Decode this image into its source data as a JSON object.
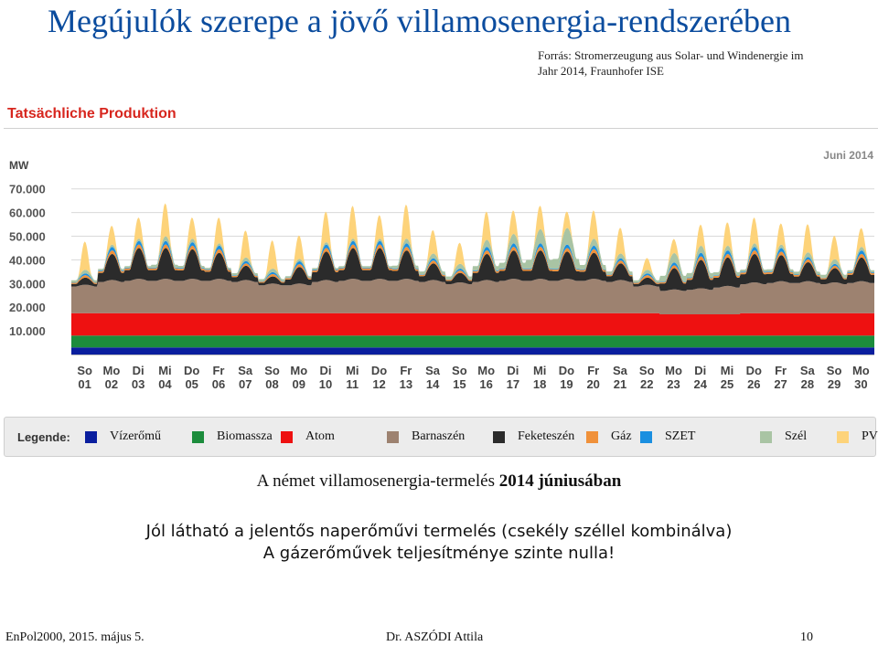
{
  "slide": {
    "title": "Megújulók szerepe a jövő villamosenergia-rendszerében",
    "source_line1": "Forrás:  Stromerzeugung aus Solar- und Windenergie im",
    "source_line2": "Jahr 2014, Fraunhofer ISE",
    "chart_heading": "Tatsächliche Produktion",
    "caption_prefix": "A német villamosenergia-termelés ",
    "caption_bold": "2014 júniusában",
    "note_line1": "Jól látható a jelentős naperőművi termelés (csekély széllel kombinálva)",
    "note_line2": "A gázerőművek teljesítménye szinte nulla!"
  },
  "footer": {
    "left": "EnPol2000, 2015. május 5.",
    "center": "Dr. ASZÓDI Attila",
    "page": "10"
  },
  "legend": {
    "title": "Legende:",
    "items": [
      {
        "label": "Vízerőmű",
        "color": "#0a1e9e"
      },
      {
        "label": "Biomassza",
        "color": "#1c8c3c"
      },
      {
        "label": "Atom",
        "color": "#ee1111"
      },
      {
        "label": "Barnaszén",
        "color": "#9d8270"
      },
      {
        "label": "Feketeszén",
        "color": "#2b2b2b"
      },
      {
        "label": "Gáz",
        "color": "#f0913a"
      },
      {
        "label": "SZET",
        "color": "#1a8fe0"
      },
      {
        "label": "Szél",
        "color": "#a9c4a4"
      },
      {
        "label": "PV",
        "color": "#fdd37a"
      }
    ]
  },
  "chart_data": {
    "type": "area",
    "stacked": true,
    "unit_label": "MW",
    "period_label": "Juni 2014",
    "y_ticks": [
      "10.000",
      "20.000",
      "30.000",
      "40.000",
      "50.000",
      "60.000",
      "70.000"
    ],
    "ylim": [
      0,
      75000
    ],
    "grid": true,
    "legend_position": "bottom",
    "x": [
      "So 01",
      "Mo 02",
      "Di 03",
      "Mi 04",
      "Do 05",
      "Fr 06",
      "Sa 07",
      "So 08",
      "Mo 09",
      "Di 10",
      "Mi 11",
      "Do 12",
      "Fr 13",
      "Sa 14",
      "So 15",
      "Mo 16",
      "Di 17",
      "Mi 18",
      "Do 19",
      "Fr 20",
      "Sa 21",
      "So 22",
      "Mo 23",
      "Di 24",
      "Mi 25",
      "Do 26",
      "Fr 27",
      "Sa 28",
      "So 29",
      "Mo 30"
    ],
    "x_day_labels": [
      "So",
      "Mo",
      "Di",
      "Mi",
      "Do",
      "Fr",
      "Sa",
      "So",
      "Mo",
      "Di",
      "Mi",
      "Do",
      "Fr",
      "Sa",
      "So",
      "Mo",
      "Di",
      "Mi",
      "Do",
      "Fr",
      "Sa",
      "So",
      "Mo",
      "Di",
      "Mi",
      "Do",
      "Fr",
      "Sa",
      "So",
      "Mo"
    ],
    "x_date_labels": [
      "01",
      "02",
      "03",
      "04",
      "05",
      "06",
      "07",
      "08",
      "09",
      "10",
      "11",
      "12",
      "13",
      "14",
      "15",
      "16",
      "17",
      "18",
      "19",
      "20",
      "21",
      "22",
      "23",
      "24",
      "25",
      "26",
      "27",
      "28",
      "29",
      "30"
    ],
    "series": [
      {
        "name": "Vízerőmű",
        "color": "#0a1e9e",
        "daily_max": [
          3000,
          3000,
          3000,
          3000,
          3000,
          3000,
          3000,
          3000,
          3000,
          3000,
          3000,
          3000,
          3000,
          3000,
          3000,
          3000,
          3000,
          3000,
          3000,
          3000,
          3000,
          3000,
          3000,
          3000,
          3000,
          3000,
          3000,
          3000,
          3000,
          3000
        ]
      },
      {
        "name": "Biomassza",
        "color": "#1c8c3c",
        "daily_max": [
          5000,
          5000,
          5000,
          5000,
          5000,
          5000,
          5000,
          5000,
          5000,
          5000,
          5000,
          5000,
          5000,
          5000,
          5000,
          5000,
          5000,
          5000,
          5000,
          5000,
          5000,
          5000,
          5000,
          5000,
          5000,
          5000,
          5000,
          5000,
          5000,
          5000
        ]
      },
      {
        "name": "Atom",
        "color": "#ee1111",
        "daily_max": [
          9500,
          9500,
          9500,
          9500,
          9500,
          9500,
          9500,
          9500,
          9500,
          9500,
          9500,
          9500,
          9500,
          9500,
          9500,
          9500,
          9500,
          9500,
          9500,
          9500,
          9500,
          9500,
          9000,
          9000,
          9000,
          9500,
          9500,
          9500,
          9500,
          9500
        ]
      },
      {
        "name": "Barnaszén",
        "color": "#9d8270",
        "daily_max": [
          12000,
          14000,
          14500,
          14500,
          14500,
          14500,
          14000,
          12500,
          12500,
          14000,
          14500,
          14500,
          14500,
          14000,
          13000,
          14000,
          14500,
          14500,
          14500,
          14500,
          14000,
          12000,
          10500,
          11000,
          12000,
          13000,
          13500,
          13500,
          13000,
          13500
        ]
      },
      {
        "name": "Feketeszén",
        "color": "#2b2b2b",
        "daily_max": [
          3000,
          11000,
          13000,
          13000,
          12500,
          11000,
          6000,
          3000,
          7000,
          12000,
          13000,
          13000,
          12000,
          7000,
          4000,
          11000,
          12000,
          12000,
          11500,
          11000,
          7000,
          3000,
          9000,
          12000,
          12000,
          12000,
          11000,
          8000,
          6000,
          10000
        ]
      },
      {
        "name": "Gáz",
        "color": "#f0913a",
        "daily_max": [
          1000,
          1500,
          1500,
          1500,
          1500,
          1500,
          1000,
          1000,
          1200,
          1500,
          1500,
          1500,
          1500,
          1200,
          1000,
          1500,
          1500,
          1500,
          1500,
          1500,
          1200,
          1000,
          1200,
          1500,
          1500,
          1500,
          1500,
          1200,
          1000,
          1500
        ]
      },
      {
        "name": "SZET",
        "color": "#1a8fe0",
        "daily_max": [
          800,
          1500,
          1500,
          1500,
          1500,
          1500,
          1000,
          800,
          1200,
          1500,
          1500,
          1500,
          1500,
          1000,
          800,
          1500,
          1500,
          1500,
          1500,
          1500,
          1000,
          800,
          1200,
          1500,
          1500,
          1500,
          1500,
          1000,
          800,
          1500
        ]
      },
      {
        "name": "Szél",
        "color": "#a9c4a4",
        "daily_max": [
          1500,
          1000,
          1000,
          2000,
          1500,
          1000,
          1500,
          1500,
          1000,
          1000,
          1000,
          1000,
          2000,
          2000,
          2000,
          3000,
          4000,
          6000,
          7000,
          3000,
          2000,
          1500,
          4000,
          3000,
          2000,
          1500,
          1500,
          2000,
          2000,
          1500
        ]
      },
      {
        "name": "PV",
        "color": "#fdd37a",
        "daily_max": [
          12000,
          8000,
          9000,
          14000,
          9000,
          11000,
          11500,
          12000,
          10000,
          13000,
          14000,
          10000,
          14500,
          10000,
          9000,
          12000,
          10000,
          10000,
          7000,
          12000,
          11000,
          5000,
          6000,
          9000,
          10000,
          11000,
          9000,
          12000,
          10000,
          8000
        ]
      }
    ]
  }
}
